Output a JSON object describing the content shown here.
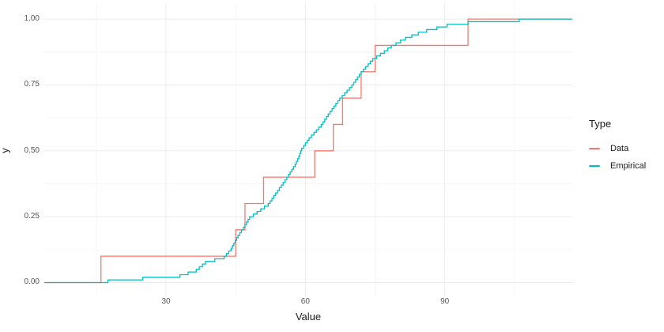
{
  "chart_data": {
    "type": "line",
    "subtype": "ecdf_step",
    "title": "",
    "xlabel": "Value",
    "ylabel": "y",
    "grid": true,
    "legend": {
      "title": "Type",
      "position": "right",
      "items": [
        {
          "label": "Data",
          "color": "#F8766D"
        },
        {
          "label": "Empirical",
          "color": "#00BFC4"
        }
      ]
    },
    "x_axis": {
      "ticks": [
        {
          "v": 30,
          "label": "30"
        },
        {
          "v": 60,
          "label": "60"
        },
        {
          "v": 90,
          "label": "90"
        }
      ],
      "minor": [
        15,
        45,
        75,
        105
      ],
      "range_shown": [
        3.8,
        117.44
      ]
    },
    "y_axis": {
      "ticks": [
        {
          "v": 0.0,
          "label": "0.00"
        },
        {
          "v": 0.25,
          "label": "0.25"
        },
        {
          "v": 0.5,
          "label": "0.50"
        },
        {
          "v": 0.75,
          "label": "0.75"
        },
        {
          "v": 1.0,
          "label": "1.00"
        }
      ],
      "minor": [
        0.125,
        0.375,
        0.625,
        0.875
      ],
      "range_shown": [
        -0.0525,
        1.0603
      ]
    },
    "series": [
      {
        "name": "Data",
        "color": "#F8766D",
        "kind": "ecdf_points",
        "n": 10,
        "step_height": 0.1,
        "points": [
          16,
          45,
          47,
          51,
          62,
          66,
          68,
          72,
          75,
          95
        ],
        "pad_left_y": 0,
        "pad_right_y": 1
      },
      {
        "name": "Empirical",
        "color": "#00BFC4",
        "kind": "ecdf_quantiles",
        "n": 100,
        "step_height": 0.01,
        "quantile_p": [
          0.01,
          0.02,
          0.03,
          0.05,
          0.08,
          0.1,
          0.13,
          0.18,
          0.22,
          0.25,
          0.3,
          0.35,
          0.4,
          0.45,
          0.48,
          0.51,
          0.55,
          0.6,
          0.65,
          0.7,
          0.75,
          0.8,
          0.85,
          0.88,
          0.9,
          0.93,
          0.955,
          0.98,
          0.99,
          0.995,
          1.0
        ],
        "quantile_x": [
          17.5,
          25,
          33,
          36.5,
          38.5,
          42.5,
          44,
          45.5,
          47,
          48,
          52,
          54,
          56,
          57.8,
          58.6,
          59.2,
          60.8,
          63.4,
          65.3,
          67.4,
          70,
          72,
          74.5,
          77,
          78.5,
          81.5,
          85,
          90.5,
          95,
          99,
          106
        ],
        "pad_left_y": 0,
        "pad_right_y": 1
      }
    ],
    "colors": {
      "background": "#FFFFFF",
      "grid_major": "#EBEBEB",
      "grid_minor": "#F6F6F6"
    }
  }
}
